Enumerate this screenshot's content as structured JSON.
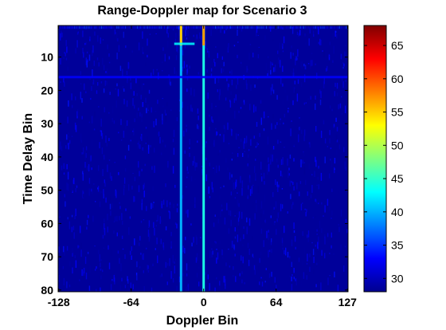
{
  "chart_data": {
    "type": "heatmap",
    "title": "Range-Doppler map for Scenario 3",
    "xlabel": "Doppler Bin",
    "ylabel": "Time Delay Bin",
    "xlim": [
      -128,
      127
    ],
    "ylim": [
      1,
      80
    ],
    "y_reversed": true,
    "xticks": [
      -128,
      -64,
      0,
      64,
      127
    ],
    "yticks": [
      10,
      20,
      30,
      40,
      50,
      60,
      70,
      80
    ],
    "colormap": "jet",
    "clim": [
      28,
      68
    ],
    "colorbar_ticks": [
      30,
      35,
      40,
      45,
      50,
      55,
      60,
      65
    ],
    "background_level": 30,
    "features": [
      {
        "doppler": -20,
        "delay_from": 1,
        "delay_to": 80,
        "peak": 55,
        "typical": 40
      },
      {
        "doppler": 0,
        "delay_from": 1,
        "delay_to": 80,
        "peak": 57,
        "typical": 44
      },
      {
        "doppler_from": -26,
        "doppler_to": -8,
        "delay": 6,
        "peak": 43
      },
      {
        "doppler_from": -128,
        "doppler_to": 127,
        "delay": 16,
        "peak": 33
      }
    ]
  },
  "colors": {
    "background": "#ffffff",
    "heatmap_base": "#00009a"
  }
}
